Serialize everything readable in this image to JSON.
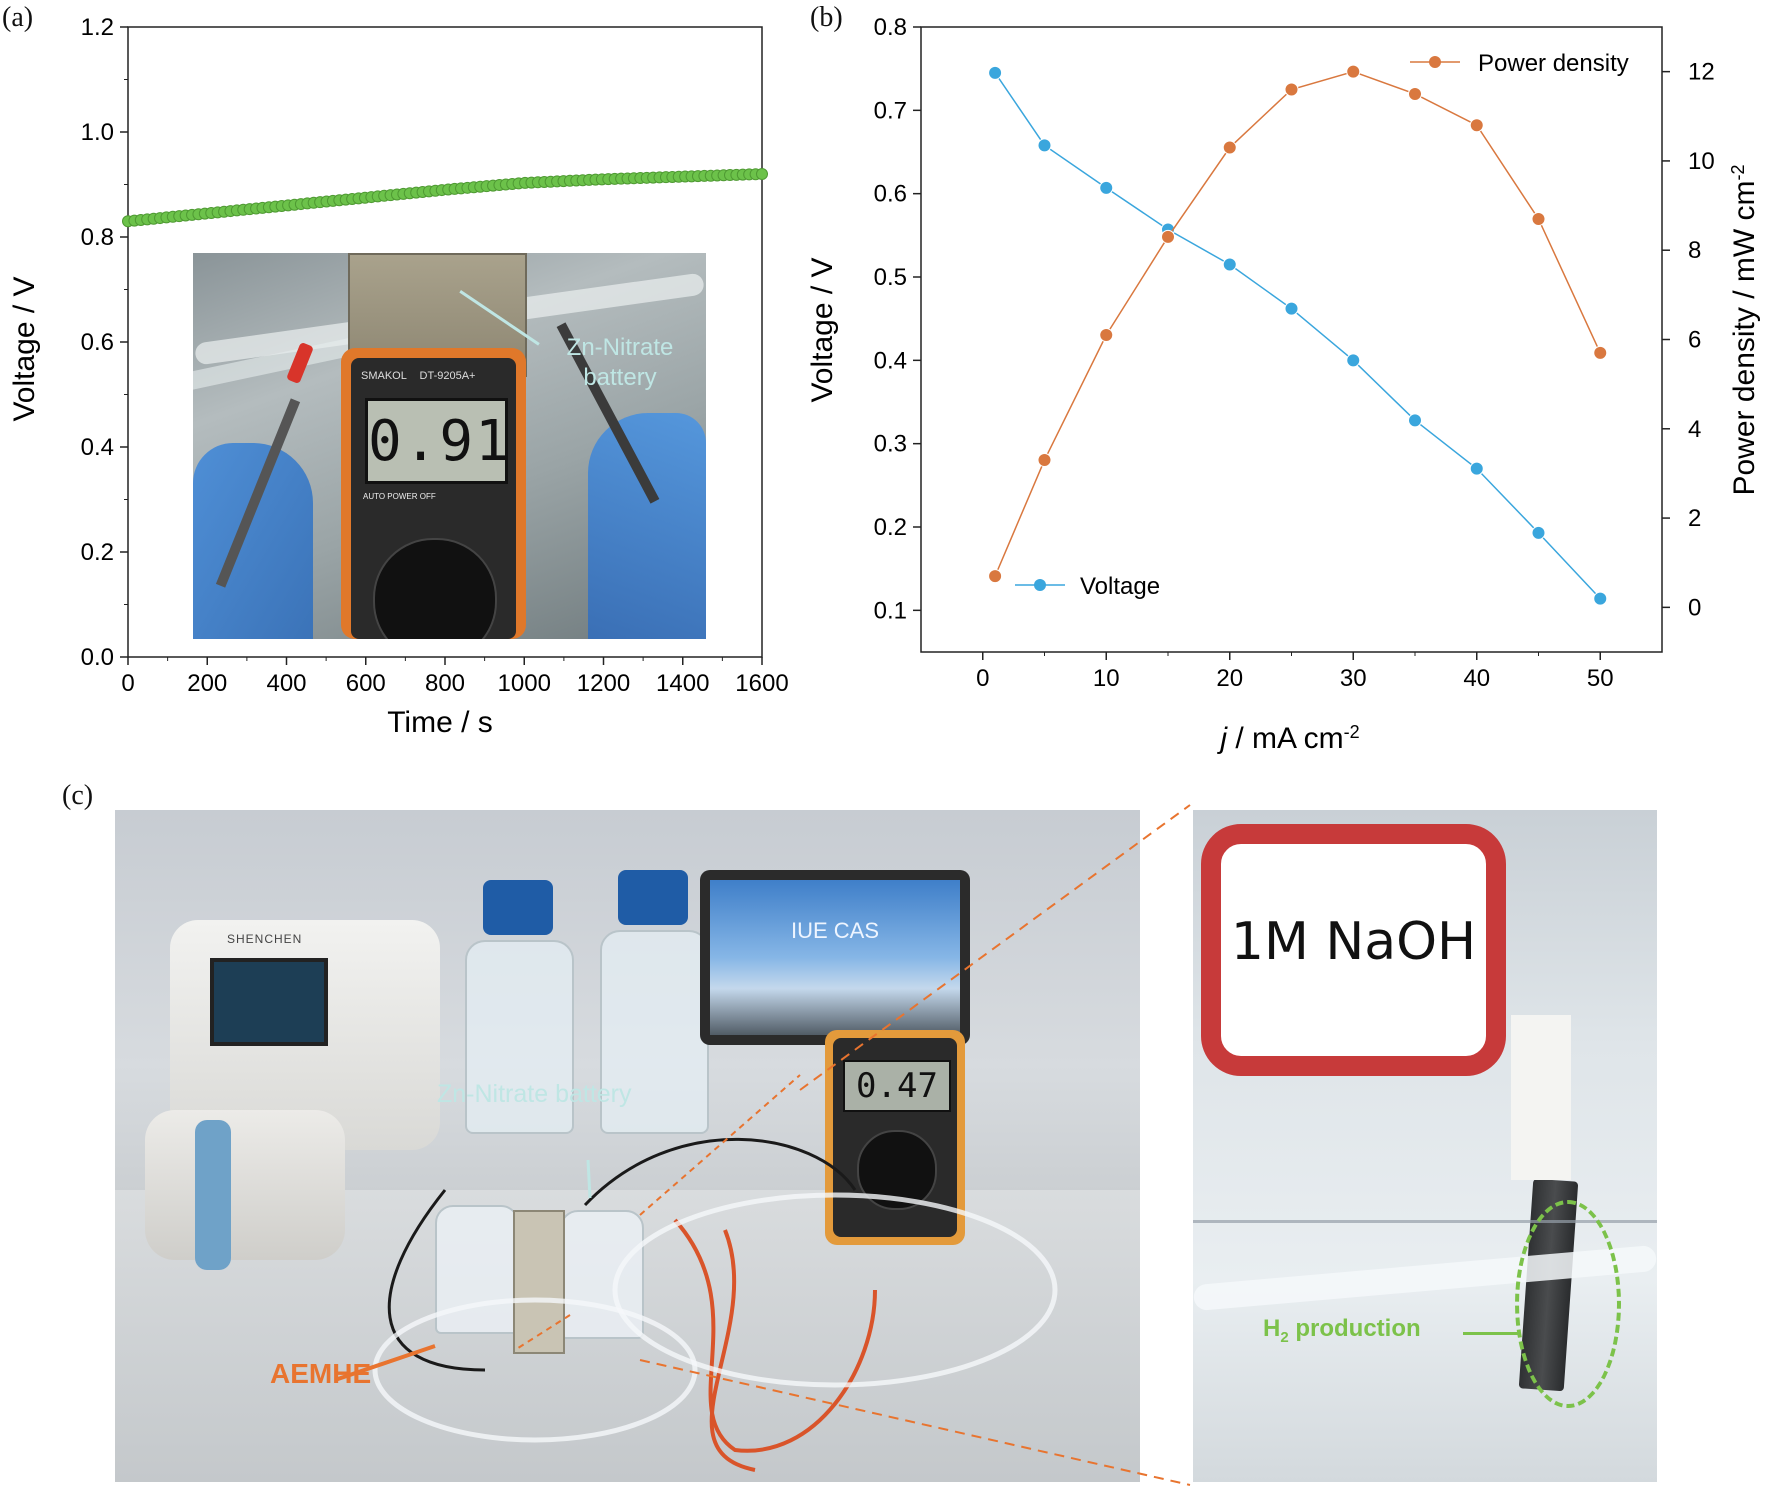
{
  "panel_labels": {
    "a": "(a)",
    "b": "(b)",
    "c": "(c)"
  },
  "colors": {
    "voltage_a": "#6cc24a",
    "voltage_b": "#3aa6dd",
    "power": "#d9783f",
    "annot": "#bfe6e4",
    "aemhe": "#e8742f",
    "h2": "#7cc24a"
  },
  "chart_data": [
    {
      "type": "scatter",
      "panel": "(a)",
      "xlabel": "Time / s",
      "ylabel": "Voltage / V",
      "xlim": [
        0,
        1600
      ],
      "ylim": [
        0,
        1.2
      ],
      "xticks": [
        "0",
        "200",
        "400",
        "600",
        "800",
        "1000",
        "1200",
        "1400",
        "1600"
      ],
      "yticks": [
        "0.0",
        "0.2",
        "0.4",
        "0.6",
        "0.8",
        "1.0",
        "1.2"
      ],
      "grid": false,
      "series": [
        {
          "color": "#6cc24a",
          "x_start": 0,
          "x_end": 1600,
          "points": 100,
          "x": [
            0,
            200,
            400,
            600,
            800,
            1000,
            1200,
            1400,
            1600
          ],
          "y": [
            0.83,
            0.845,
            0.86,
            0.875,
            0.89,
            0.903,
            0.91,
            0.915,
            0.92
          ]
        }
      ],
      "inset_photo": {
        "annotation": "Zn-Nitrate\nbattery",
        "meter_reading": "0.91",
        "meter_brand": "SMAKOL",
        "meter_model": "DT-9205A+",
        "meter_labels": "AUTO  POWER OFF"
      }
    },
    {
      "type": "line",
      "panel": "(b)",
      "xlabel": "j / mA cm-2",
      "ylabel_left": "Voltage / V",
      "ylabel_right": "Power density / mW cm-2",
      "xlim": [
        -5,
        55
      ],
      "ylim_left": [
        0.05,
        0.8
      ],
      "ylim_right": [
        -1,
        13
      ],
      "xticks": [
        "0",
        "10",
        "20",
        "30",
        "40",
        "50"
      ],
      "yticks_left": [
        "0.1",
        "0.2",
        "0.3",
        "0.4",
        "0.5",
        "0.6",
        "0.7",
        "0.8"
      ],
      "yticks_right": [
        "0",
        "2",
        "4",
        "6",
        "8",
        "10",
        "12"
      ],
      "legend": [
        "Power density",
        "Voltage"
      ],
      "series": [
        {
          "name": "Voltage",
          "axis": "left",
          "color": "#3aa6dd",
          "x": [
            1,
            5,
            10,
            15,
            20,
            25,
            30,
            35,
            40,
            45,
            50
          ],
          "y": [
            0.745,
            0.658,
            0.607,
            0.557,
            0.515,
            0.462,
            0.4,
            0.328,
            0.27,
            0.193,
            0.114
          ]
        },
        {
          "name": "Power density",
          "axis": "right",
          "color": "#d9783f",
          "x": [
            1,
            5,
            10,
            15,
            20,
            25,
            30,
            35,
            40,
            45,
            50
          ],
          "y": [
            0.7,
            3.3,
            6.1,
            8.3,
            10.3,
            11.6,
            12.0,
            11.5,
            10.8,
            8.7,
            5.7
          ]
        }
      ]
    }
  ],
  "photo_c": {
    "left_annotations": {
      "battery": "Zn-Nitrate battery",
      "aemhe": "AEMHE",
      "screen": "IUE CAS",
      "meter": "0.47",
      "pump": "SHENCHEN"
    },
    "right_annotations": {
      "bottle_label": "1M NaOH",
      "h2": "H2 production",
      "h2_main": "H",
      "h2_sub": "2",
      "h2_rest": " production"
    }
  }
}
